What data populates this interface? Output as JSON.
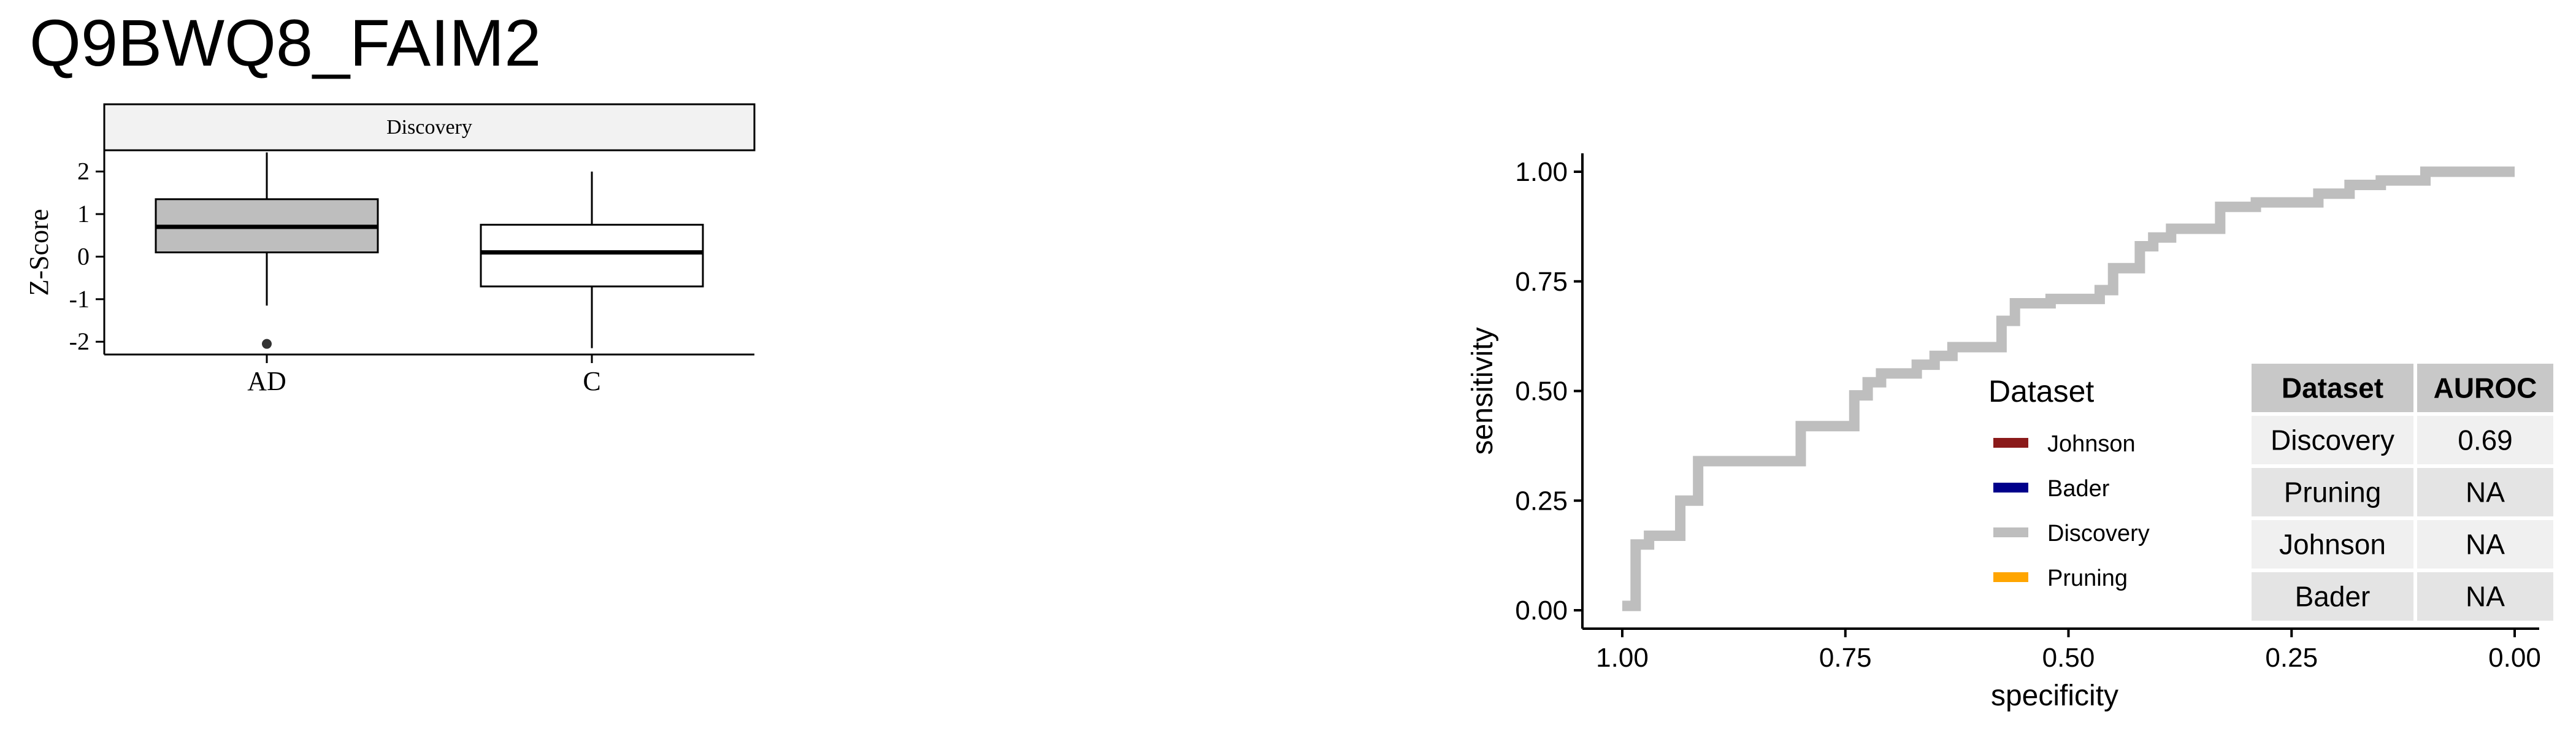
{
  "title": "Q9BWQ8_FAIM2",
  "chart_data": [
    {
      "type": "box",
      "facet_label": "Discovery",
      "ylabel": "Z-Score",
      "xlabel": "",
      "ylim": [
        -2.3,
        2.5
      ],
      "yticks": [
        -2,
        -1,
        0,
        1,
        2
      ],
      "groups": [
        {
          "name": "AD",
          "fill": "#bebebe",
          "q1": 0.1,
          "median": 0.7,
          "q3": 1.35,
          "whisker_low": -1.15,
          "whisker_high": 2.45,
          "outliers": [
            -2.05
          ]
        },
        {
          "name": "C",
          "fill": "#ffffff",
          "q1": -0.7,
          "median": 0.1,
          "q3": 0.75,
          "whisker_low": -2.15,
          "whisker_high": 2.0,
          "outliers": []
        }
      ]
    },
    {
      "type": "line",
      "subtype": "roc-step",
      "xlabel": "specificity",
      "ylabel": "sensitivity",
      "xlim": [
        1.0,
        0.0
      ],
      "ylim": [
        0.0,
        1.0
      ],
      "x_reversed": true,
      "xticks": [
        "1.00",
        "0.75",
        "0.50",
        "0.25",
        "0.00"
      ],
      "yticks": [
        "0.00",
        "0.25",
        "0.50",
        "0.75",
        "1.00"
      ],
      "series": [
        {
          "name": "Discovery",
          "color": "#bebebe",
          "points": [
            [
              1.0,
              0.01
            ],
            [
              0.985,
              0.01
            ],
            [
              0.985,
              0.15
            ],
            [
              0.97,
              0.15
            ],
            [
              0.97,
              0.17
            ],
            [
              0.935,
              0.17
            ],
            [
              0.935,
              0.25
            ],
            [
              0.915,
              0.25
            ],
            [
              0.915,
              0.34
            ],
            [
              0.8,
              0.34
            ],
            [
              0.8,
              0.42
            ],
            [
              0.74,
              0.42
            ],
            [
              0.74,
              0.49
            ],
            [
              0.725,
              0.49
            ],
            [
              0.725,
              0.52
            ],
            [
              0.71,
              0.52
            ],
            [
              0.71,
              0.54
            ],
            [
              0.67,
              0.54
            ],
            [
              0.67,
              0.56
            ],
            [
              0.65,
              0.56
            ],
            [
              0.65,
              0.58
            ],
            [
              0.63,
              0.58
            ],
            [
              0.63,
              0.6
            ],
            [
              0.575,
              0.6
            ],
            [
              0.575,
              0.66
            ],
            [
              0.56,
              0.66
            ],
            [
              0.56,
              0.7
            ],
            [
              0.52,
              0.7
            ],
            [
              0.52,
              0.71
            ],
            [
              0.465,
              0.71
            ],
            [
              0.465,
              0.73
            ],
            [
              0.45,
              0.73
            ],
            [
              0.45,
              0.78
            ],
            [
              0.42,
              0.78
            ],
            [
              0.42,
              0.83
            ],
            [
              0.405,
              0.83
            ],
            [
              0.405,
              0.85
            ],
            [
              0.385,
              0.85
            ],
            [
              0.385,
              0.87
            ],
            [
              0.33,
              0.87
            ],
            [
              0.33,
              0.92
            ],
            [
              0.29,
              0.92
            ],
            [
              0.29,
              0.93
            ],
            [
              0.22,
              0.93
            ],
            [
              0.22,
              0.95
            ],
            [
              0.185,
              0.95
            ],
            [
              0.185,
              0.97
            ],
            [
              0.15,
              0.97
            ],
            [
              0.15,
              0.98
            ],
            [
              0.1,
              0.98
            ],
            [
              0.1,
              1.0
            ],
            [
              0.0,
              1.0
            ]
          ]
        }
      ],
      "legend": {
        "title": "Dataset",
        "placement": "center-right",
        "items": [
          {
            "label": "Johnson",
            "color": "#8b1a1a"
          },
          {
            "label": "Bader",
            "color": "#00008b"
          },
          {
            "label": "Discovery",
            "color": "#bebebe"
          },
          {
            "label": "Pruning",
            "color": "#ffa500"
          }
        ]
      },
      "table": {
        "headers": [
          "Dataset",
          "AUROC"
        ],
        "rows": [
          [
            "Discovery",
            "0.69"
          ],
          [
            "Pruning",
            "NA"
          ],
          [
            "Johnson",
            "NA"
          ],
          [
            "Bader",
            "NA"
          ]
        ]
      }
    }
  ]
}
